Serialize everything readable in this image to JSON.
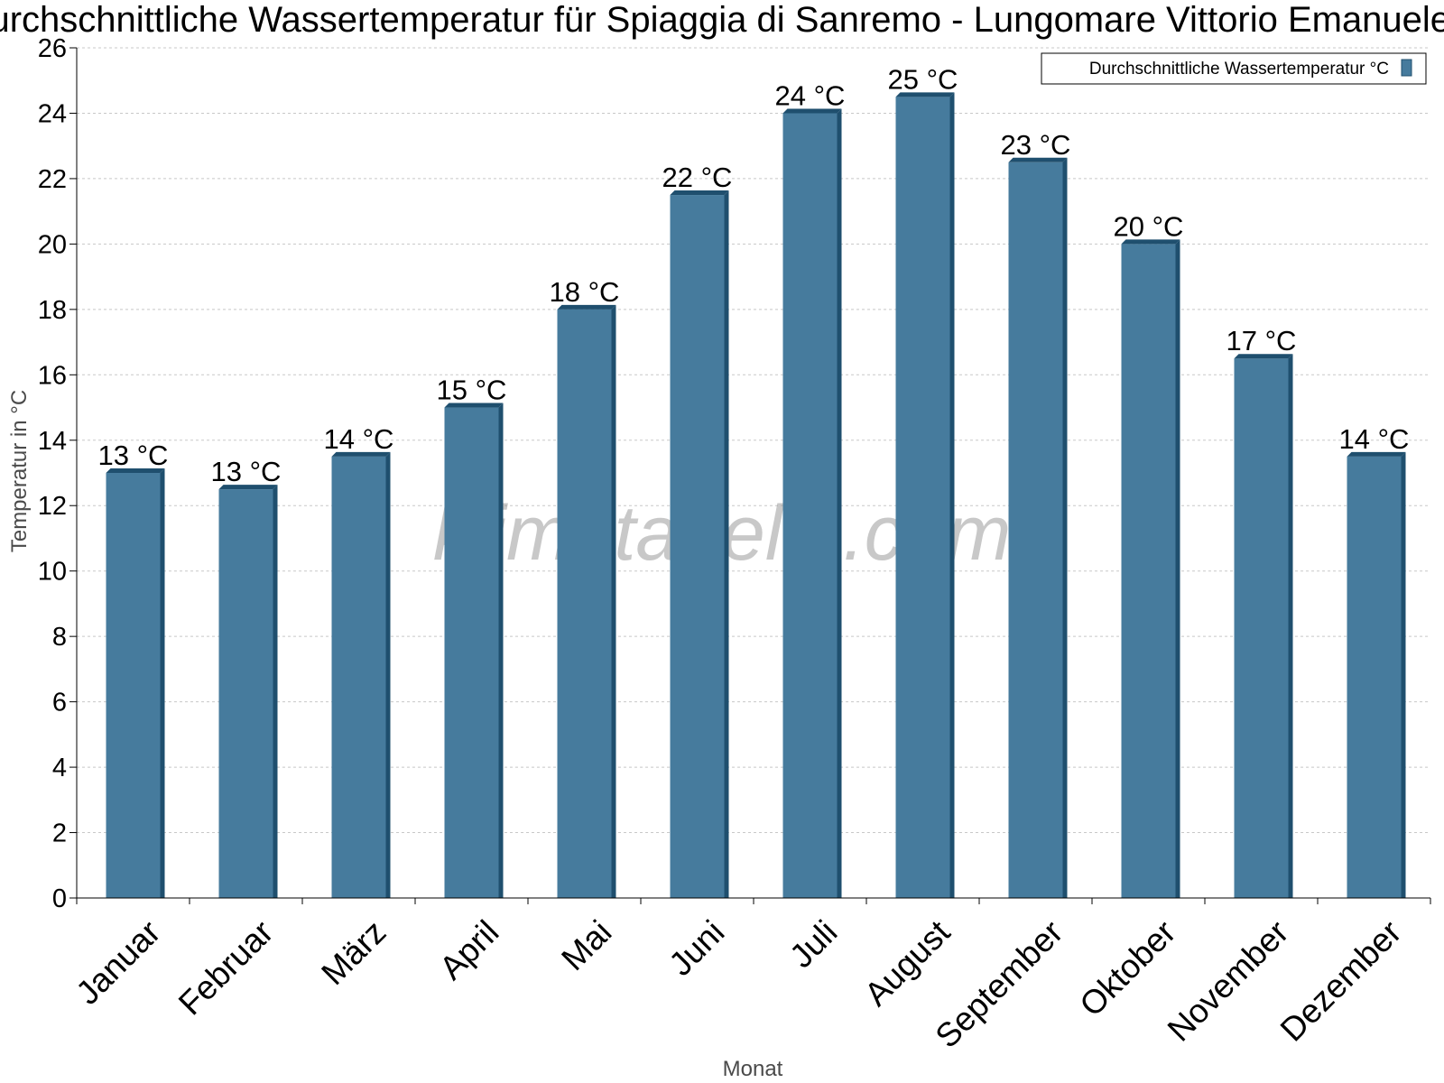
{
  "chart_data": {
    "type": "bar",
    "title": "Durchschnittliche Wassertemperatur für Spiaggia di Sanremo - Lungomare Vittorio Emanuele II",
    "xlabel": "Monat",
    "ylabel": "Temperatur in °C",
    "categories": [
      "Januar",
      "Februar",
      "März",
      "April",
      "Mai",
      "Juni",
      "Juli",
      "August",
      "September",
      "Oktober",
      "November",
      "Dezember"
    ],
    "series": [
      {
        "name": "Durchschnittliche Wassertemperatur °C",
        "values": [
          13,
          12.5,
          13.5,
          15,
          18,
          21.5,
          24,
          24.5,
          22.5,
          20,
          16.5,
          13.5
        ],
        "labels": [
          "13 °C",
          "13 °C",
          "14 °C",
          "15 °C",
          "18 °C",
          "22 °C",
          "24 °C",
          "25 °C",
          "23 °C",
          "20 °C",
          "17 °C",
          "14 °C"
        ]
      }
    ],
    "ylim": [
      0,
      26
    ],
    "yticks": [
      0,
      2,
      4,
      6,
      8,
      10,
      12,
      14,
      16,
      18,
      20,
      22,
      24,
      26
    ],
    "grid": true,
    "legend_position": "top-right",
    "colors": {
      "bar": "#467b9d",
      "bar_side": "#1f4f6e",
      "bar_top": "#1f4f6e",
      "grid": "#c8c8c8"
    },
    "watermark": "klimatabelle.com"
  }
}
